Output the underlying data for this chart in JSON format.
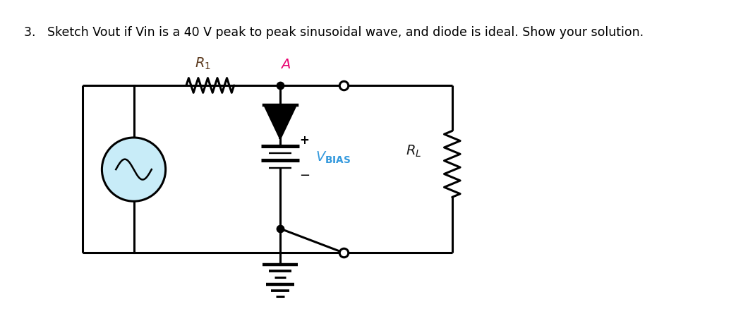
{
  "title": "3.   Sketch Vout if Vin is a 40 V peak to peak sinusoidal wave, and diode is ideal. Show your solution.",
  "title_fontsize": 12.5,
  "bg_color": "#ffffff",
  "label_color_R1": "#5c3a1e",
  "label_color_A": "#e8006f",
  "label_color_VBIAS": "#3399dd",
  "label_color_RL": "#1a1a1a",
  "source_fill": "#c8ecf8",
  "lw": 2.2
}
